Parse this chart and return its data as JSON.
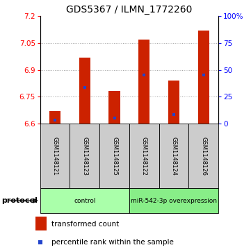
{
  "title": "GDS5367 / ILMN_1772260",
  "samples": [
    "GSM1148121",
    "GSM1148123",
    "GSM1148125",
    "GSM1148122",
    "GSM1148124",
    "GSM1148126"
  ],
  "bar_tops": [
    6.67,
    6.97,
    6.78,
    7.07,
    6.84,
    7.12
  ],
  "bar_bottom": 6.6,
  "blue_values": [
    6.62,
    6.8,
    6.63,
    6.87,
    6.65,
    6.87
  ],
  "ylim": [
    6.6,
    7.2
  ],
  "yticks_left": [
    6.6,
    6.75,
    6.9,
    7.05,
    7.2
  ],
  "right_pcts": [
    0,
    25,
    50,
    75,
    100
  ],
  "bar_color": "#cc2200",
  "blue_color": "#2244cc",
  "bar_width": 0.38,
  "groups": [
    {
      "label": "control",
      "start": 0,
      "end": 2,
      "color": "#aaffaa"
    },
    {
      "label": "miR-542-3p overexpression",
      "start": 3,
      "end": 5,
      "color": "#88ee88"
    }
  ],
  "sample_box_color": "#cccccc",
  "protocol_label": "protocol",
  "legend1_color": "#cc2200",
  "legend1_label": "transformed count",
  "legend2_color": "#2244cc",
  "legend2_label": "percentile rank within the sample",
  "grid_color": "#888888",
  "title_fontsize": 10
}
